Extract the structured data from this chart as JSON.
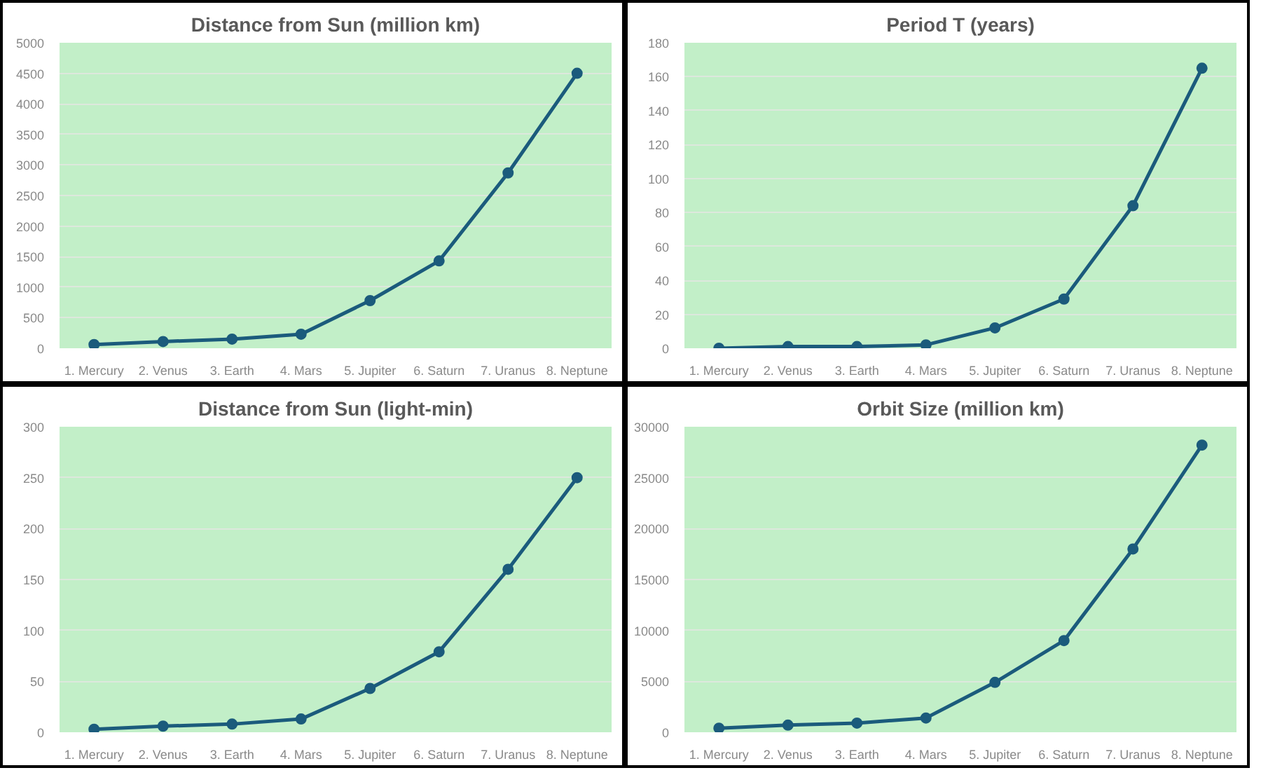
{
  "chart_data": [
    {
      "type": "line",
      "title": "Distance from Sun (million km)",
      "categories": [
        "1. Mercury",
        "2. Venus",
        "3. Earth",
        "4. Mars",
        "5. Jupiter",
        "6. Saturn",
        "7. Uranus",
        "8. Neptune"
      ],
      "series": [
        {
          "color": "#1b5b7c",
          "values": [
            60,
            110,
            150,
            230,
            780,
            1430,
            2870,
            4500
          ]
        }
      ],
      "ylim": [
        0,
        5000
      ],
      "yticks": [
        0,
        500,
        1000,
        1500,
        2000,
        2500,
        3000,
        3500,
        4000,
        4500,
        5000
      ],
      "grid": "y",
      "marker": "circle"
    },
    {
      "type": "line",
      "title": "Period T (years)",
      "categories": [
        "1. Mercury",
        "2. Venus",
        "3. Earth",
        "4. Mars",
        "5. Jupiter",
        "6. Saturn",
        "7. Uranus",
        "8. Neptune"
      ],
      "series": [
        {
          "color": "#1b5b7c",
          "values": [
            0,
            1,
            1,
            2,
            12,
            29,
            84,
            165
          ]
        }
      ],
      "ylim": [
        0,
        180
      ],
      "yticks": [
        0,
        20,
        40,
        60,
        80,
        100,
        120,
        140,
        160,
        180
      ],
      "grid": "y",
      "marker": "circle"
    },
    {
      "type": "line",
      "title": "Distance from Sun (light-min)",
      "categories": [
        "1. Mercury",
        "2. Venus",
        "3. Earth",
        "4. Mars",
        "5. Jupiter",
        "6. Saturn",
        "7. Uranus",
        "8. Neptune"
      ],
      "series": [
        {
          "color": "#1b5b7c",
          "values": [
            3,
            6,
            8,
            13,
            43,
            79,
            160,
            250
          ]
        }
      ],
      "ylim": [
        0,
        300
      ],
      "yticks": [
        0,
        50,
        100,
        150,
        200,
        250,
        300
      ],
      "grid": "y",
      "marker": "circle"
    },
    {
      "type": "line",
      "title": "Orbit Size (million km)",
      "categories": [
        "1. Mercury",
        "2. Venus",
        "3. Earth",
        "4. Mars",
        "5. Jupiter",
        "6. Saturn",
        "7. Uranus",
        "8. Neptune"
      ],
      "series": [
        {
          "color": "#1b5b7c",
          "values": [
            400,
            700,
            900,
            1400,
            4900,
            9000,
            18000,
            28200
          ]
        }
      ],
      "ylim": [
        0,
        30000
      ],
      "yticks": [
        0,
        5000,
        10000,
        15000,
        20000,
        25000,
        30000
      ],
      "grid": "y",
      "marker": "circle"
    }
  ]
}
